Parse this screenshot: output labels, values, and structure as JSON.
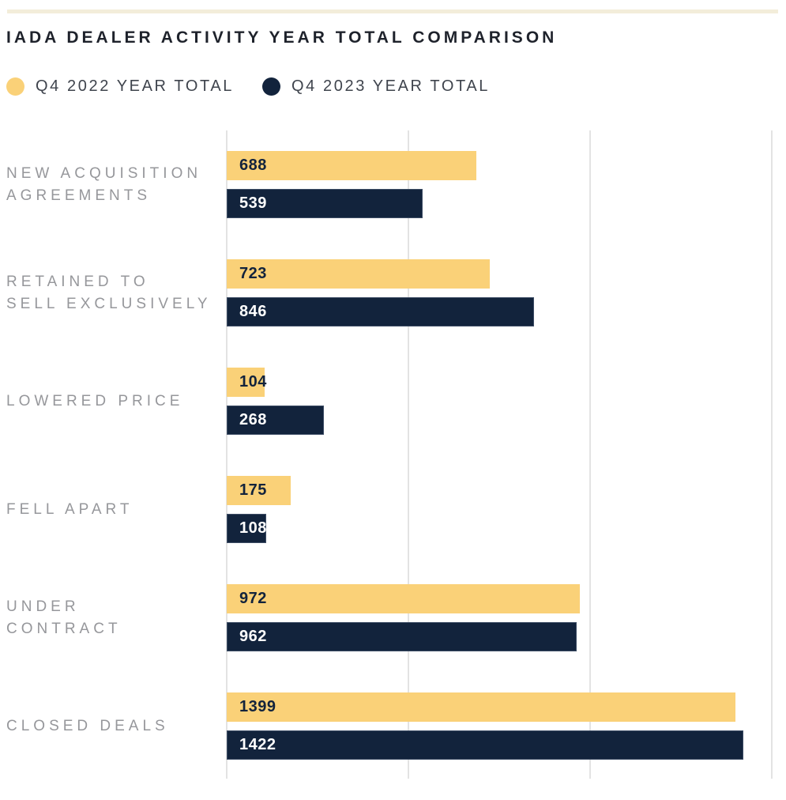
{
  "page": {
    "title": "IADA DEALER ACTIVITY YEAR TOTAL COMPARISON"
  },
  "chart_data": {
    "type": "bar",
    "orientation": "horizontal",
    "title": "IADA DEALER ACTIVITY YEAR TOTAL COMPARISON",
    "categories": [
      "NEW ACQUISITION\nAGREEMENTS",
      "RETAINED TO\nSELL EXCLUSIVELY",
      "LOWERED PRICE",
      "FELL APART",
      "UNDER\nCONTRACT",
      "CLOSED DEALS"
    ],
    "series": [
      {
        "name": "Q4 2022 YEAR TOTAL",
        "color": "#FAD178",
        "value_label_color": "#12233C",
        "values": [
          688,
          723,
          104,
          175,
          972,
          1399
        ]
      },
      {
        "name": "Q4 2023 YEAR TOTAL",
        "color": "#12233C",
        "value_label_color": "#FFFFFF",
        "values": [
          539,
          846,
          268,
          108,
          962,
          1422
        ]
      }
    ],
    "xlim": [
      0,
      1500
    ],
    "gridline_values": [
      0,
      500,
      1000,
      1500
    ],
    "grid": true,
    "axis_tick_labels_visible": false,
    "legend_position": "top-left",
    "value_labels": "inside-start"
  },
  "style": {
    "accent_band_color": "#F3EDDA",
    "grid_color": "#E3E3E3",
    "category_label_color": "#96979B",
    "legend_text_color": "#3F444D",
    "title_color": "#1E222B"
  }
}
